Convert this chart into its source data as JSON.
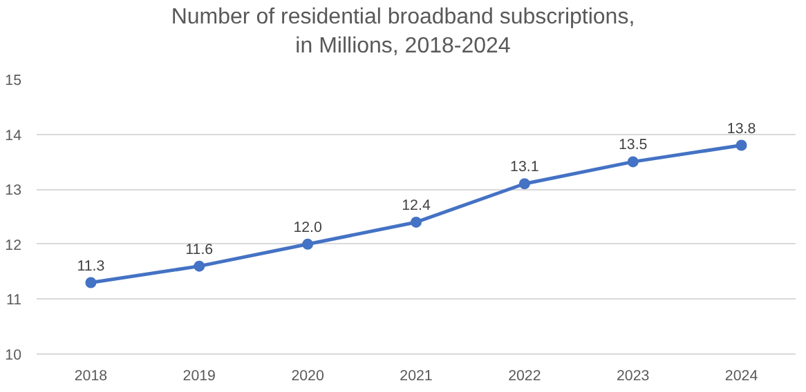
{
  "chart_data": {
    "type": "line",
    "title": "Number of residential broadband subscriptions, in Millions, 2018-2024",
    "categories": [
      "2018",
      "2019",
      "2020",
      "2021",
      "2022",
      "2023",
      "2024"
    ],
    "series": [
      {
        "color": "#4472c4",
        "values": [
          11.3,
          11.6,
          12.0,
          12.4,
          13.1,
          13.5,
          13.8
        ]
      }
    ],
    "value_labels": [
      "11.3",
      "11.6",
      "12.0",
      "12.4",
      "13.1",
      "13.5",
      "13.8"
    ],
    "ylim": [
      10,
      15
    ],
    "yticks": [
      10,
      11,
      12,
      13,
      14,
      15
    ],
    "grid": "y",
    "marker": "circle",
    "line_style": "solid"
  }
}
